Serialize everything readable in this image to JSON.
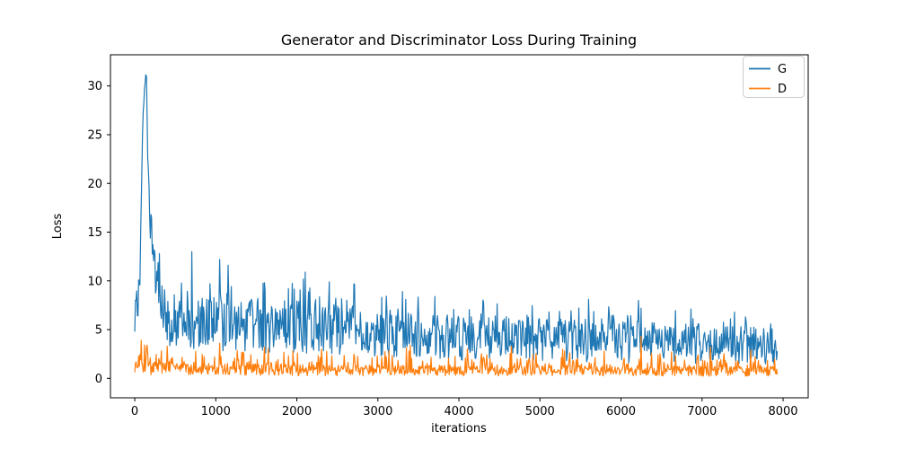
{
  "chart_data": {
    "type": "line",
    "title": "Generator and Discriminator Loss During Training",
    "xlabel": "iterations",
    "ylabel": "Loss",
    "x_ticks": [
      0,
      1000,
      2000,
      3000,
      4000,
      5000,
      6000,
      7000,
      8000
    ],
    "y_ticks": [
      0,
      5,
      10,
      15,
      20,
      25,
      30
    ],
    "xlim": [
      -300,
      8310
    ],
    "ylim": [
      -2.0,
      33.2
    ],
    "x_data_range": [
      0,
      7928
    ],
    "sample_step": 8,
    "grid": false,
    "background": "#ffffff",
    "legend": {
      "position": "upper right",
      "entries": [
        "G",
        "D"
      ]
    },
    "series": [
      {
        "name": "G",
        "color": "#1f77b4",
        "peak": {
          "x": 135,
          "y": 31.5
        },
        "mean_keyframes": [
          [
            0,
            6.0
          ],
          [
            25,
            6.5
          ],
          [
            60,
            9.0
          ],
          [
            100,
            26.5
          ],
          [
            135,
            31.5
          ],
          [
            165,
            21.0
          ],
          [
            210,
            12.5
          ],
          [
            300,
            8.0
          ],
          [
            420,
            6.0
          ],
          [
            700,
            5.8
          ],
          [
            1000,
            5.6
          ],
          [
            1500,
            5.3
          ],
          [
            2000,
            5.1
          ],
          [
            2500,
            4.9
          ],
          [
            3000,
            4.5
          ],
          [
            3500,
            4.3
          ],
          [
            4000,
            4.1
          ],
          [
            4500,
            4.0
          ],
          [
            5000,
            3.9
          ],
          [
            5500,
            3.8
          ],
          [
            6000,
            3.7
          ],
          [
            6500,
            3.6
          ],
          [
            7000,
            3.5
          ],
          [
            7928,
            3.4
          ]
        ],
        "band_keyframes": [
          [
            0,
            2.0
          ],
          [
            100,
            0.8
          ],
          [
            135,
            0.5
          ],
          [
            200,
            2.5
          ],
          [
            300,
            2.7
          ],
          [
            1000,
            2.8
          ],
          [
            2000,
            2.6
          ],
          [
            3000,
            2.4
          ],
          [
            5000,
            2.2
          ],
          [
            7928,
            2.0
          ]
        ],
        "spike_amp_keyframes": [
          [
            0,
            3.0
          ],
          [
            420,
            4.5
          ],
          [
            2000,
            3.5
          ],
          [
            4000,
            3.0
          ],
          [
            7928,
            2.6
          ]
        ],
        "min_value": 0.25,
        "spikes": [
          [
            300,
            12.8
          ],
          [
            700,
            13.0
          ],
          [
            1050,
            12.2
          ],
          [
            1150,
            11.6
          ],
          [
            1600,
            9.8
          ],
          [
            2100,
            10.9
          ],
          [
            2400,
            9.9
          ],
          [
            2700,
            9.7
          ],
          [
            3300,
            8.9
          ],
          [
            3700,
            8.4
          ],
          [
            4300,
            7.8
          ],
          [
            5600,
            8.1
          ],
          [
            6250,
            7.2
          ],
          [
            7400,
            6.8
          ]
        ]
      },
      {
        "name": "D",
        "color": "#ff7f0e",
        "mean_keyframes": [
          [
            0,
            1.3
          ],
          [
            50,
            1.8
          ],
          [
            90,
            1.1
          ],
          [
            200,
            1.0
          ],
          [
            500,
            0.95
          ],
          [
            1500,
            0.85
          ],
          [
            3000,
            0.8
          ],
          [
            5000,
            0.75
          ],
          [
            7928,
            0.7
          ]
        ],
        "band_keyframes": [
          [
            0,
            1.0
          ],
          [
            90,
            0.7
          ],
          [
            500,
            0.6
          ],
          [
            3000,
            0.55
          ],
          [
            7928,
            0.5
          ]
        ],
        "spike_amp_keyframes": [
          [
            0,
            2.2
          ],
          [
            500,
            2.0
          ],
          [
            7928,
            1.8
          ]
        ],
        "min_value": 0.05,
        "spikes": [
          [
            80,
            3.9
          ],
          [
            150,
            3.4
          ],
          [
            400,
            3.3
          ],
          [
            1050,
            3.6
          ],
          [
            1600,
            3.2
          ],
          [
            2300,
            3.0
          ],
          [
            3400,
            3.4
          ],
          [
            4100,
            3.0
          ],
          [
            4650,
            3.3
          ],
          [
            5300,
            2.8
          ],
          [
            6250,
            4.3
          ],
          [
            7100,
            3.2
          ],
          [
            7600,
            2.9
          ]
        ]
      }
    ]
  }
}
